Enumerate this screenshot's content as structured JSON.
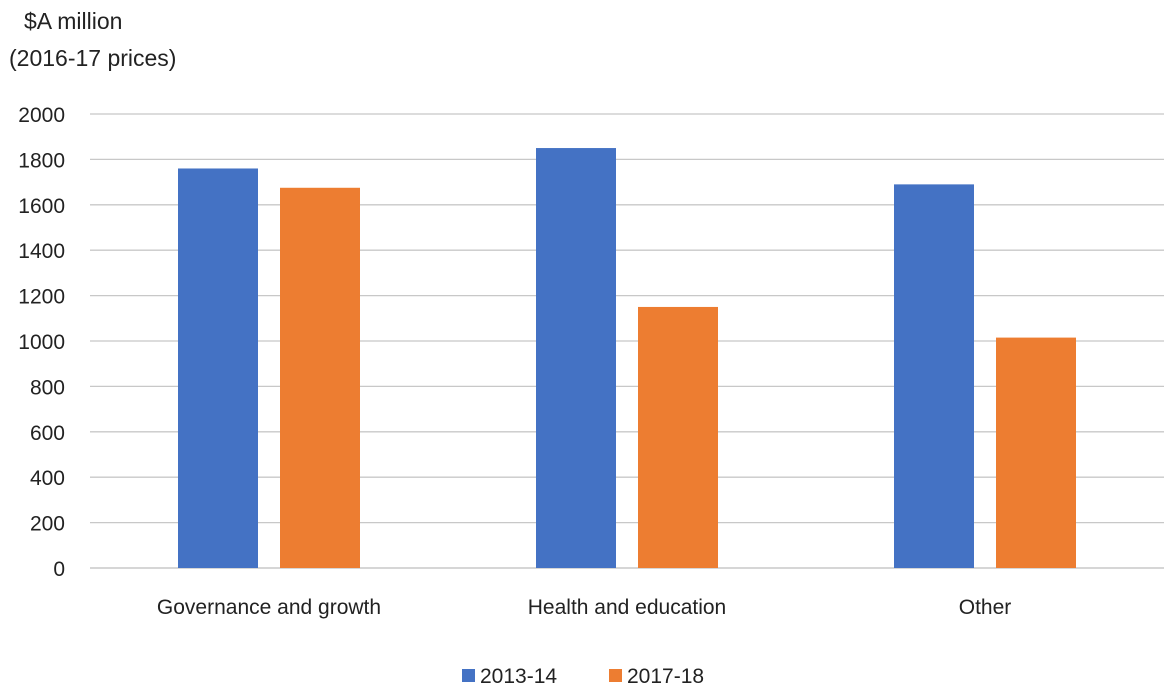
{
  "chart_data": {
    "type": "bar",
    "title": "",
    "ylabel_lines": [
      "$A million",
      "(2016-17 prices)"
    ],
    "xlabel": "",
    "categories": [
      "Governance and growth",
      "Health and education",
      "Other"
    ],
    "series": [
      {
        "name": "2013-14",
        "color": "#4472C4",
        "values": [
          1760,
          1850,
          1690
        ]
      },
      {
        "name": "2017-18",
        "color": "#ED7D31",
        "values": [
          1675,
          1150,
          1015
        ]
      }
    ],
    "ylim": [
      0,
      2000
    ],
    "yticks": [
      "0",
      "200",
      "400",
      "600",
      "800",
      "1000",
      "1200",
      "1400",
      "1600",
      "1800",
      "2000"
    ],
    "grid": true,
    "legend_position": "bottom-center"
  }
}
